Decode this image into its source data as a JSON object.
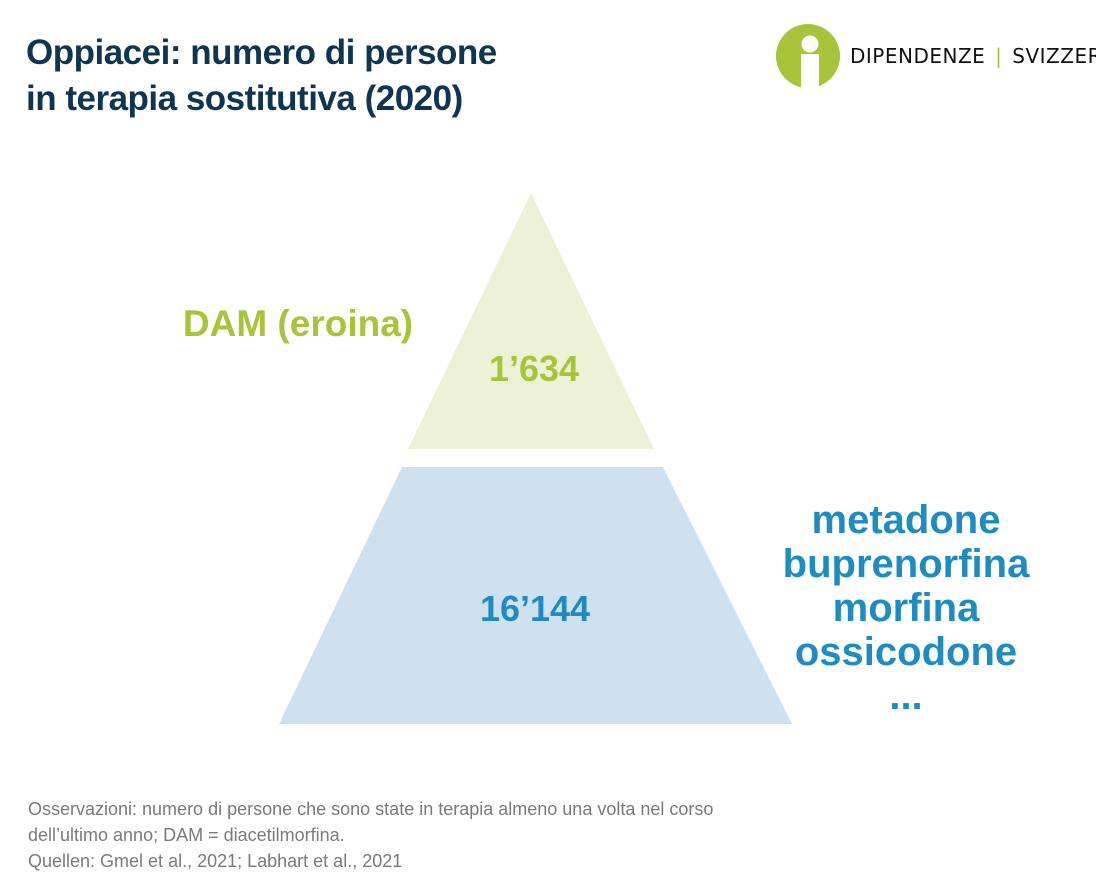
{
  "title": {
    "line1": "Oppiacei: numero di persone",
    "line2": "in terapia sostitutiva (2020)"
  },
  "brand": {
    "name_left": "DIPENDENZE",
    "separator": "|",
    "name_right": "SVIZZERA",
    "icon": "info-person-icon",
    "accent_color": "#a8c43a"
  },
  "chart_data": {
    "type": "pyramid",
    "levels": [
      {
        "label": "DAM (eroina)",
        "value": 1634,
        "value_label": "1’634",
        "fill": "#edf2d6",
        "text_color": "#a8c43a"
      },
      {
        "label": "",
        "value": 16144,
        "value_label": "16’144",
        "fill": "#cfe1ef",
        "text_color": "#1f8cc0",
        "items": [
          "metadone",
          "buprenorfina",
          "morfina",
          "ossicodone",
          "..."
        ]
      }
    ]
  },
  "notes": {
    "line1": "Osservazioni: numero di persone che sono state in terapia almeno una volta nel corso",
    "line2": "dell’ultimo anno; DAM = diacetilmorfina.",
    "line3": "Quellen: Gmel et al., 2021; Labhart et al., 2021"
  }
}
